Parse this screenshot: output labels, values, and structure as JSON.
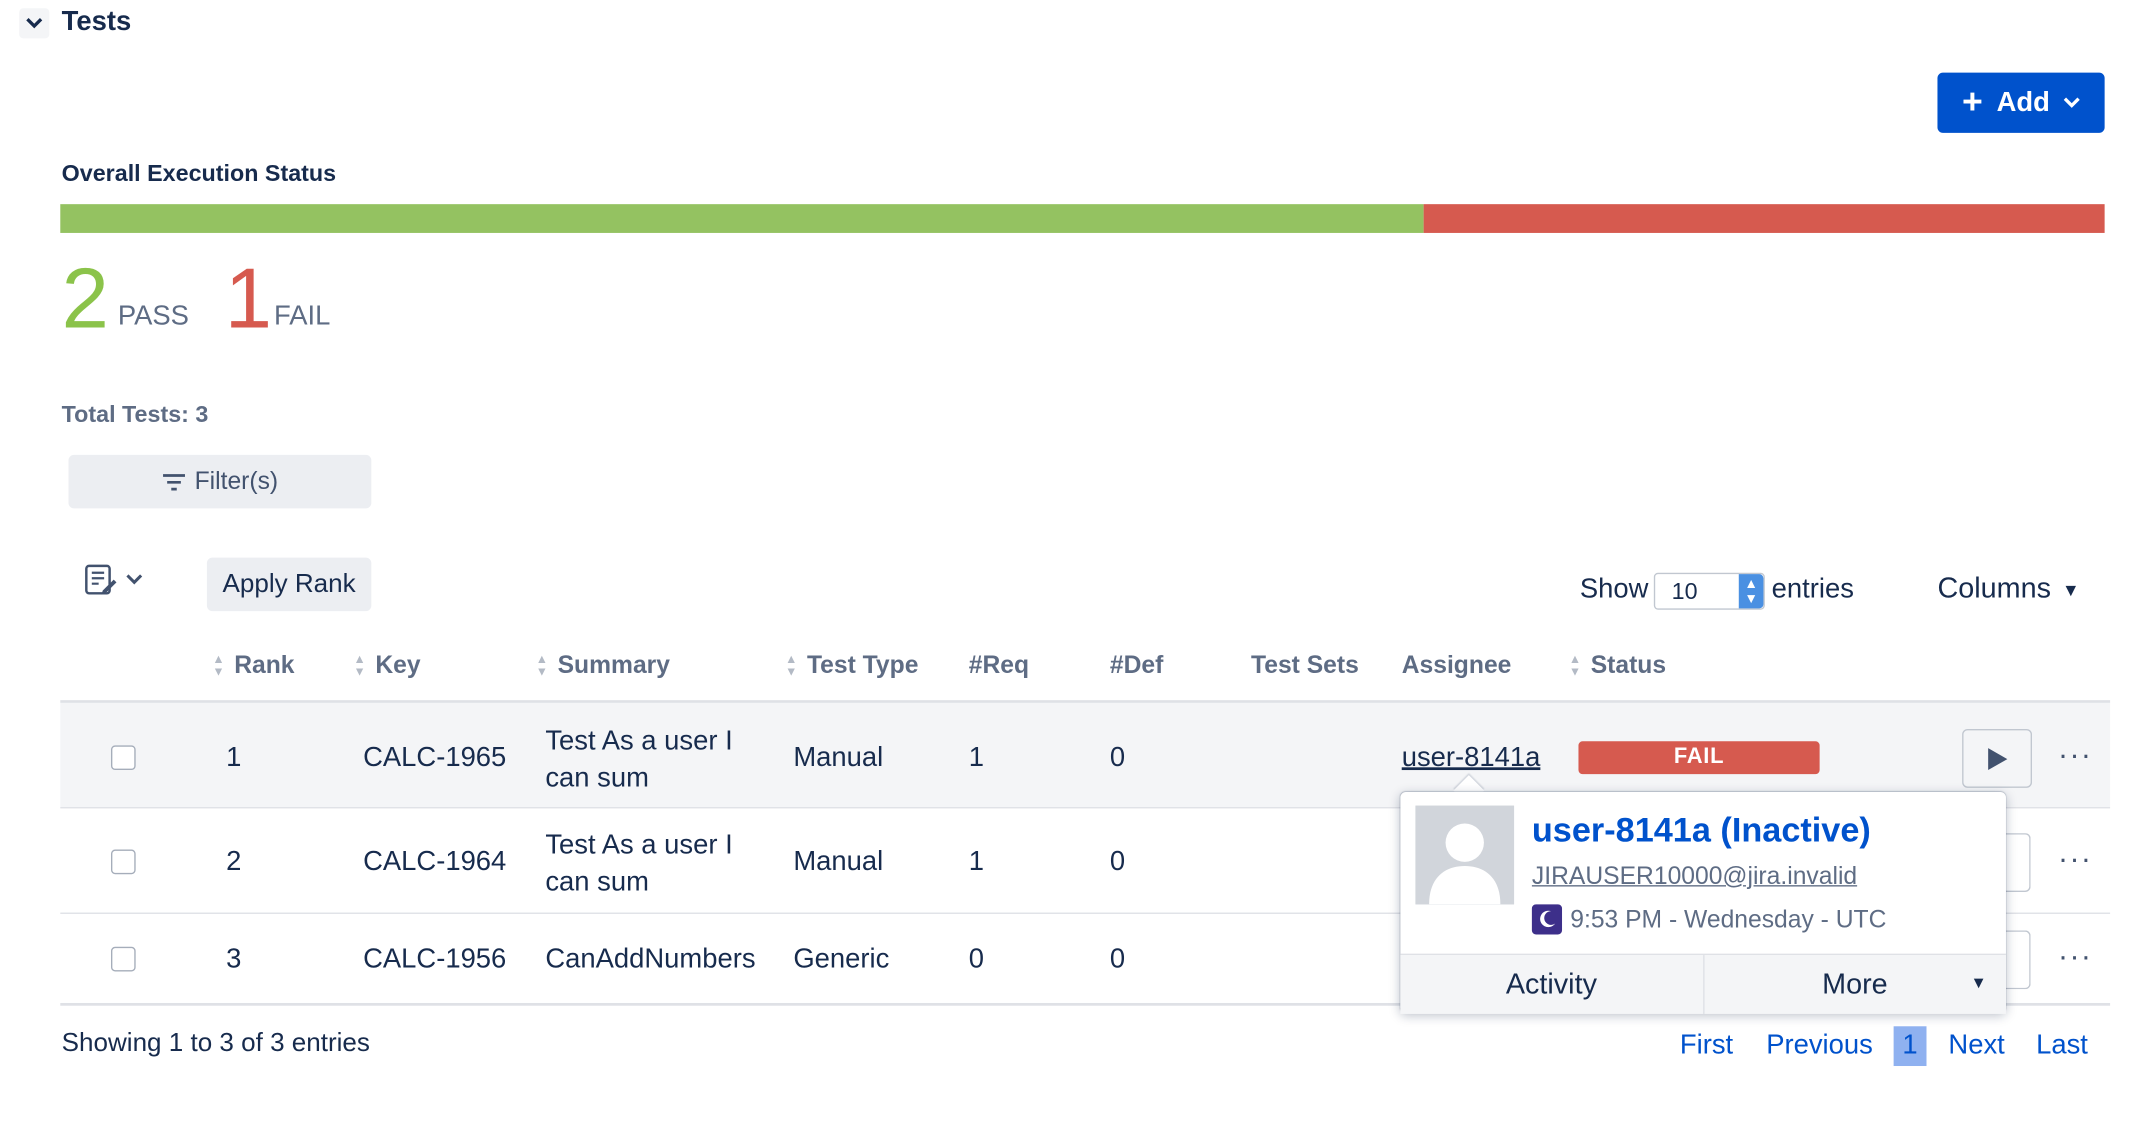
{
  "section": {
    "title": "Tests"
  },
  "toolbar": {
    "add_label": "Add"
  },
  "execution": {
    "label": "Overall Execution Status",
    "pass_fraction": 0.667,
    "pass_count": "2",
    "pass_label": "PASS",
    "fail_count": "1",
    "fail_label": "FAIL",
    "colors": {
      "pass": "#94c261",
      "fail": "#d65a4f"
    }
  },
  "total_tests": "Total Tests: 3",
  "filter": {
    "label": "Filter(s)"
  },
  "apply_rank": "Apply Rank",
  "page_size": {
    "show_label": "Show",
    "value": "10",
    "entries_label": "entries"
  },
  "columns_label": "Columns",
  "table": {
    "headers": {
      "rank": "Rank",
      "key": "Key",
      "summary": "Summary",
      "test_type": "Test Type",
      "req": "#Req",
      "def": "#Def",
      "test_sets": "Test Sets",
      "assignee": "Assignee",
      "status": "Status"
    },
    "rows": [
      {
        "rank": "1",
        "key": "CALC-1965",
        "summary_l1": "Test As a user I",
        "summary_l2": "can sum",
        "test_type": "Manual",
        "req": "1",
        "def": "0",
        "assignee": "user-8141a",
        "status": "FAIL"
      },
      {
        "rank": "2",
        "key": "CALC-1964",
        "summary_l1": "Test As a user I",
        "summary_l2": "can sum",
        "test_type": "Manual",
        "req": "1",
        "def": "0"
      },
      {
        "rank": "3",
        "key": "CALC-1956",
        "summary_l1": "CanAddNumbers",
        "test_type": "Generic",
        "req": "0",
        "def": "0"
      }
    ]
  },
  "user_popup": {
    "name": "user-8141a (Inactive)",
    "email": "JIRAUSER10000@jira.invalid",
    "time": "9:53 PM - Wednesday - UTC",
    "activity_label": "Activity",
    "more_label": "More"
  },
  "footer": {
    "showing": "Showing 1 to 3 of 3 entries",
    "first": "First",
    "previous": "Previous",
    "current": "1",
    "next": "Next",
    "last": "Last"
  }
}
